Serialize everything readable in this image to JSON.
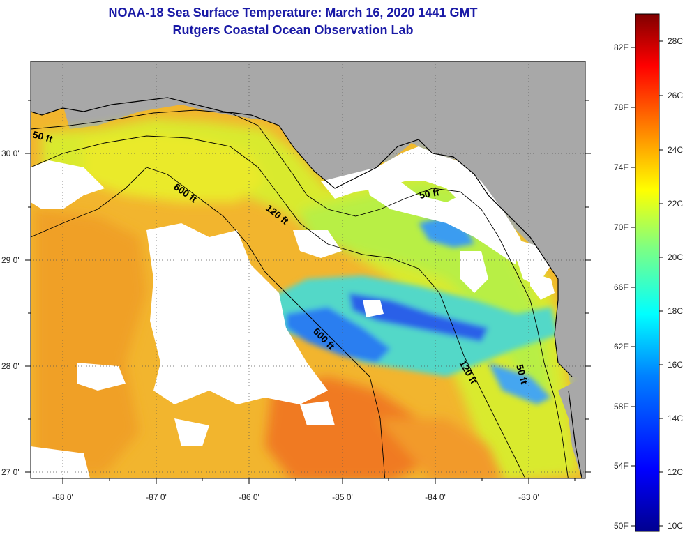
{
  "title": "NOAA-18 Sea Surface Temperature:  March 16, 2020 1441 GMT",
  "subtitle": "Rutgers Coastal Ocean Observation Lab",
  "lon_ticks": [
    "-88 0'",
    "-87 0'",
    "-86 0'",
    "-85 0'",
    "-84 0'",
    "-83 0'"
  ],
  "lat_ticks": [
    "30 0'",
    "29 0'",
    "28 0'",
    "27 0'"
  ],
  "contours": [
    "50 ft",
    "600 ft",
    "120 ft",
    "50 ft",
    "600 ft",
    "120 ft",
    "50 ft"
  ],
  "colorbar": {
    "fahrenheit": [
      "82F",
      "78F",
      "74F",
      "70F",
      "66F",
      "62F",
      "58F",
      "54F",
      "50F"
    ],
    "celsius": [
      "28C",
      "26C",
      "24C",
      "22C",
      "20C",
      "18C",
      "16C",
      "14C",
      "12C",
      "10C"
    ],
    "range_f": [
      50,
      84
    ],
    "range_c": [
      10,
      29
    ],
    "colors": [
      "#00008f",
      "#0000ff",
      "#0080ff",
      "#00ffff",
      "#80ff80",
      "#ffff00",
      "#ff8000",
      "#ff0000",
      "#800000"
    ]
  },
  "colors": {
    "land": "#a8a8a8",
    "cloud": "#ffffff",
    "warm_gulf": "#f5b32a",
    "cool_shelf": "#c8f03a",
    "cold": "#3a6cf0",
    "hot": "#f26a1b"
  }
}
